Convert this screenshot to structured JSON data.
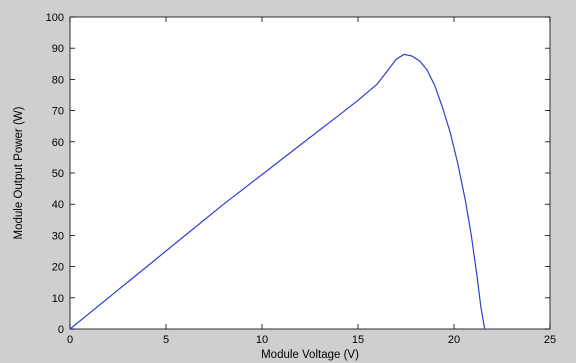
{
  "chart_data": {
    "type": "line",
    "title": "",
    "xlabel": "Module Voltage (V)",
    "ylabel": "Module Output Power (W)",
    "xlim": [
      0,
      25
    ],
    "ylim": [
      0,
      100
    ],
    "xticks": [
      0,
      5,
      10,
      15,
      20,
      25
    ],
    "yticks": [
      0,
      10,
      20,
      30,
      40,
      50,
      60,
      70,
      80,
      90,
      100
    ],
    "grid": false,
    "series": [
      {
        "color": "#2f3fd0",
        "x": [
          0,
          2,
          4,
          6,
          8,
          10,
          12,
          14,
          15,
          16,
          16.5,
          17,
          17.4,
          17.8,
          18.2,
          18.6,
          19.0,
          19.4,
          19.8,
          20.2,
          20.6,
          20.9,
          21.2,
          21.4,
          21.6
        ],
        "y": [
          0,
          10,
          20,
          30,
          40,
          49.5,
          59,
          68.5,
          73.3,
          78.5,
          82.5,
          86.5,
          88,
          87.5,
          86,
          83,
          78,
          71,
          63,
          53,
          41,
          30,
          17,
          7,
          0
        ]
      }
    ]
  }
}
